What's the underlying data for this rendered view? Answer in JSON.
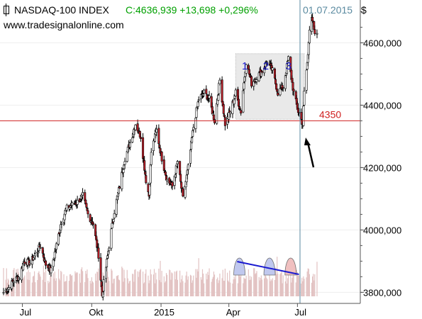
{
  "header": {
    "instrument": "NASDAQ-100 INDEX",
    "quote": "C:4636,939 +13,698 +0,296%",
    "date": "01.07.2015",
    "currency": "$",
    "website": "www.tradesignalonline.com"
  },
  "colors": {
    "up": "#ffffff",
    "down": "#c0202a",
    "wick": "#000000",
    "level": "#d02020",
    "volume": "#e2c2c2",
    "cursor": "#5a8aa0",
    "peaks_line": "#1a1ad0",
    "box_fill": "#e9e9e9",
    "axis": "#555555"
  },
  "chart_data": {
    "type": "candlestick",
    "ylim": [
      3760,
      4760
    ],
    "y_ticks": [
      3800,
      4000,
      4200,
      4400,
      4600
    ],
    "y_tick_labels": [
      "3800,000",
      "4000,000",
      "4200,000",
      "4400,000",
      "4600,000"
    ],
    "x_tick_labels": [
      "Jul",
      "Okt",
      "2015",
      "Apr",
      "Jul"
    ],
    "support_level": 4350,
    "support_label": "4350",
    "consolidation_box": {
      "from": "2015-04-10",
      "to": "2015-07-10",
      "low": 4355,
      "high": 4565
    },
    "peak_labels": [
      "1",
      "2",
      "3"
    ],
    "anchors": [
      [
        "2014-06-06",
        3800
      ],
      [
        "2014-06-13",
        3815
      ],
      [
        "2014-06-20",
        3840
      ],
      [
        "2014-06-27",
        3850
      ],
      [
        "2014-07-03",
        3900
      ],
      [
        "2014-07-11",
        3895
      ],
      [
        "2014-07-18",
        3920
      ],
      [
        "2014-07-25",
        3950
      ],
      [
        "2014-08-01",
        3890
      ],
      [
        "2014-08-08",
        3870
      ],
      [
        "2014-08-15",
        3950
      ],
      [
        "2014-08-22",
        4030
      ],
      [
        "2014-08-29",
        4070
      ],
      [
        "2014-09-05",
        4080
      ],
      [
        "2014-09-12",
        4090
      ],
      [
        "2014-09-19",
        4110
      ],
      [
        "2014-09-26",
        4050
      ],
      [
        "2014-10-03",
        4020
      ],
      [
        "2014-10-10",
        3920
      ],
      [
        "2014-10-15",
        3790
      ],
      [
        "2014-10-17",
        3830
      ],
      [
        "2014-10-24",
        3950
      ],
      [
        "2014-10-31",
        4060
      ],
      [
        "2014-11-07",
        4140
      ],
      [
        "2014-11-14",
        4230
      ],
      [
        "2014-11-21",
        4280
      ],
      [
        "2014-11-28",
        4340
      ],
      [
        "2014-12-05",
        4300
      ],
      [
        "2014-12-12",
        4160
      ],
      [
        "2014-12-16",
        4110
      ],
      [
        "2014-12-19",
        4250
      ],
      [
        "2014-12-26",
        4320
      ],
      [
        "2015-01-02",
        4230
      ],
      [
        "2015-01-09",
        4160
      ],
      [
        "2015-01-16",
        4140
      ],
      [
        "2015-01-23",
        4220
      ],
      [
        "2015-01-30",
        4100
      ],
      [
        "2015-02-06",
        4200
      ],
      [
        "2015-02-13",
        4330
      ],
      [
        "2015-02-20",
        4420
      ],
      [
        "2015-02-27",
        4440
      ],
      [
        "2015-03-06",
        4420
      ],
      [
        "2015-03-13",
        4350
      ],
      [
        "2015-03-20",
        4480
      ],
      [
        "2015-03-27",
        4340
      ],
      [
        "2015-04-03",
        4380
      ],
      [
        "2015-04-10",
        4440
      ],
      [
        "2015-04-17",
        4380
      ],
      [
        "2015-04-24",
        4540
      ],
      [
        "2015-05-01",
        4470
      ],
      [
        "2015-05-08",
        4490
      ],
      [
        "2015-05-15",
        4510
      ],
      [
        "2015-05-22",
        4540
      ],
      [
        "2015-05-29",
        4510
      ],
      [
        "2015-06-05",
        4440
      ],
      [
        "2015-06-12",
        4460
      ],
      [
        "2015-06-19",
        4550
      ],
      [
        "2015-06-26",
        4440
      ],
      [
        "2015-07-02",
        4380
      ],
      [
        "2015-07-08",
        4340
      ],
      [
        "2015-07-10",
        4440
      ],
      [
        "2015-07-15",
        4560
      ],
      [
        "2015-07-17",
        4650
      ],
      [
        "2015-07-20",
        4690
      ],
      [
        "2015-07-24",
        4620
      ],
      [
        "2015-07-27",
        4630
      ]
    ]
  }
}
